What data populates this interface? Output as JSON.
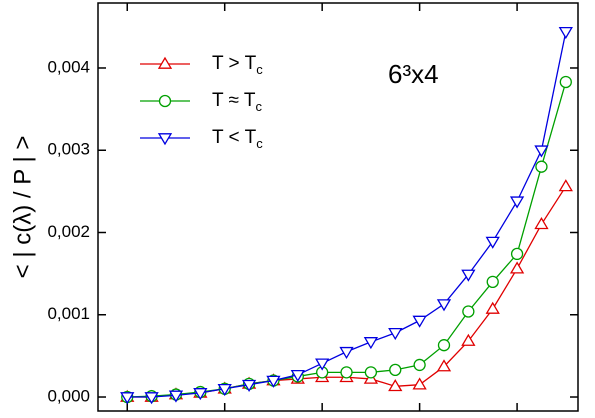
{
  "chart_data": {
    "type": "line",
    "y_label": "< | c(λ) / P | >",
    "annotation": "6³x4",
    "x": [
      0,
      1,
      2,
      3,
      4,
      5,
      6,
      7,
      8,
      9,
      10,
      11,
      12,
      13,
      14,
      15,
      16,
      17,
      18
    ],
    "xlim": [
      -1.2,
      18.5
    ],
    "xticks": [
      0,
      4,
      8,
      12,
      16
    ],
    "ylim": [
      -0.00017,
      0.00479
    ],
    "yticks": [
      {
        "value": 0,
        "label": "0,000"
      },
      {
        "value": 0.001,
        "label": "0,001"
      },
      {
        "value": 0.002,
        "label": "0,002"
      },
      {
        "value": 0.003,
        "label": "0,003"
      },
      {
        "value": 0.004,
        "label": "0,004"
      }
    ],
    "legend": "upper left",
    "series": [
      {
        "name": "T > Tc",
        "color": "#e00000",
        "marker": "triangle-up",
        "values": [
          0,
          0,
          3e-05,
          5e-05,
          0.0001,
          0.00016,
          0.0002,
          0.00022,
          0.00024,
          0.00024,
          0.00022,
          0.00013,
          0.00015,
          0.00037,
          0.00068,
          0.00107,
          0.00156,
          0.0021,
          0.00256
        ]
      },
      {
        "name": "T ≈ Tc",
        "color": "#00a000",
        "marker": "circle",
        "values": [
          0,
          1e-05,
          3e-05,
          6e-05,
          0.0001,
          0.00016,
          0.0002,
          0.00025,
          0.0003,
          0.0003,
          0.0003,
          0.00033,
          0.00039,
          0.00063,
          0.00104,
          0.0014,
          0.00174,
          0.0028,
          0.00383
        ]
      },
      {
        "name": "T < Tc",
        "color": "#0000e0",
        "marker": "triangle-down",
        "values": [
          0,
          0,
          2e-05,
          5e-05,
          0.0001,
          0.00015,
          0.0002,
          0.00027,
          0.00041,
          0.00055,
          0.00067,
          0.00078,
          0.00093,
          0.00113,
          0.00149,
          0.00189,
          0.00238,
          0.003,
          0.00444
        ]
      }
    ]
  }
}
